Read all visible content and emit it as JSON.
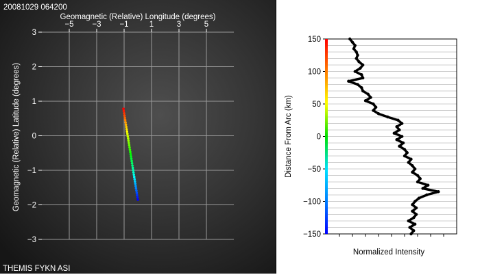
{
  "header": {
    "timestamp": "20081029 064200"
  },
  "footer": {
    "source": "THEMIS FYKN ASI"
  },
  "colors": {
    "left_background": "#1b1b1b",
    "grid": "#9a9a9a",
    "left_text": "#ffffff",
    "right_background": "#ffffff",
    "profile_line": "#000000",
    "right_text": "#000000"
  },
  "chart_data": [
    {
      "type": "line",
      "title": "",
      "xlabel": "Geomagnetic (Relative) Longitude (degrees)",
      "ylabel": "Geomagnetic (Relative) Latitude (degrees)",
      "xlim": [
        -7,
        7
      ],
      "ylim": [
        -3,
        3
      ],
      "xticks": [
        -5,
        -3,
        -1,
        1,
        3,
        5
      ],
      "xtick_labels": [
        "−5",
        "−3",
        "−1",
        "1",
        "3",
        "5"
      ],
      "yticks": [
        3,
        2,
        1,
        0,
        -1,
        -2,
        -3
      ],
      "ytick_labels": [
        "3",
        "2",
        "1",
        "0",
        "−1",
        "−2",
        "−3"
      ],
      "grid": true,
      "colormap": "rainbow (red at north end, blue at south end)",
      "series": [
        {
          "x": [
            -1.05,
            0.0
          ],
          "y": [
            0.78,
            -1.85
          ]
        }
      ]
    },
    {
      "type": "line",
      "title": "",
      "xlabel": "Normalized Intensity",
      "ylabel": "Distance From Arc (km)",
      "ylim": [
        -150,
        150
      ],
      "yticks": [
        150,
        100,
        50,
        0,
        -50,
        -100,
        -150
      ],
      "ytick_labels": [
        "150",
        "100",
        "50",
        "0",
        "−50",
        "−100",
        "−150"
      ],
      "xlim": [
        0,
        1
      ],
      "grid": true,
      "colorbar": "rainbow (red at +150 km, blue at −150 km)",
      "series": [
        {
          "y": [
            150,
            145,
            140,
            135,
            130,
            125,
            120,
            115,
            110,
            105,
            100,
            95,
            90,
            85,
            80,
            75,
            70,
            65,
            60,
            55,
            50,
            45,
            40,
            35,
            30,
            25,
            20,
            15,
            10,
            5,
            0,
            -5,
            -10,
            -15,
            -20,
            -25,
            -30,
            -35,
            -40,
            -45,
            -50,
            -55,
            -60,
            -65,
            -70,
            -75,
            -80,
            -85,
            -90,
            -95,
            -100,
            -105,
            -110,
            -115,
            -120,
            -125,
            -130,
            -135,
            -140,
            -145,
            -150
          ],
          "x": [
            0.18,
            0.2,
            0.22,
            0.21,
            0.23,
            0.24,
            0.23,
            0.25,
            0.28,
            0.26,
            0.22,
            0.27,
            0.28,
            0.17,
            0.24,
            0.27,
            0.28,
            0.32,
            0.34,
            0.3,
            0.36,
            0.38,
            0.36,
            0.4,
            0.47,
            0.55,
            0.58,
            0.54,
            0.56,
            0.52,
            0.58,
            0.54,
            0.59,
            0.56,
            0.6,
            0.62,
            0.6,
            0.65,
            0.63,
            0.66,
            0.68,
            0.66,
            0.7,
            0.72,
            0.7,
            0.78,
            0.74,
            0.86,
            0.77,
            0.71,
            0.68,
            0.66,
            0.69,
            0.66,
            0.69,
            0.67,
            0.63,
            0.68,
            0.64,
            0.67,
            0.65
          ]
        }
      ]
    }
  ]
}
